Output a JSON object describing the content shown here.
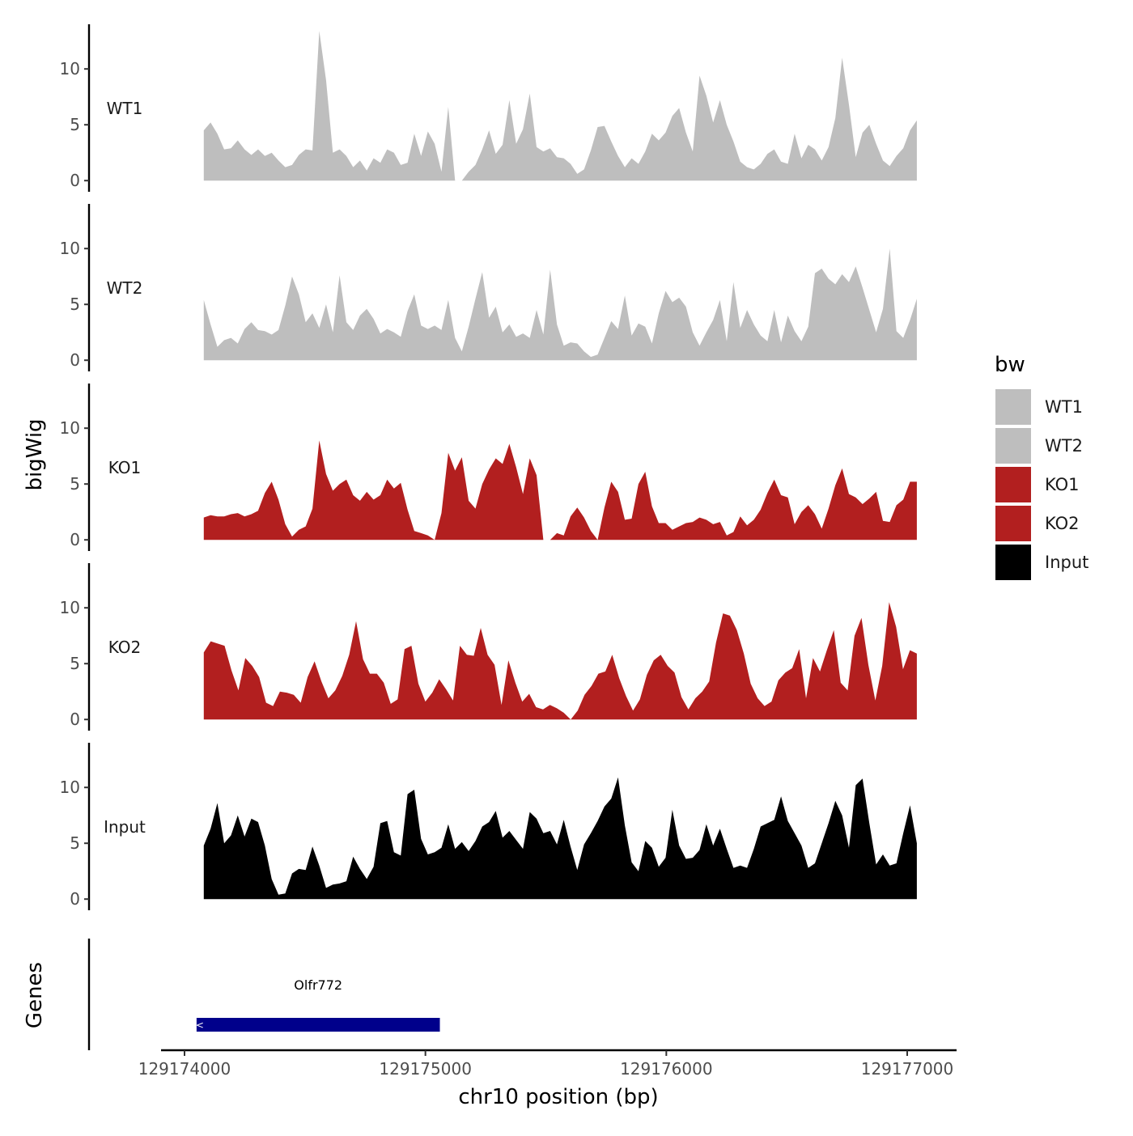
{
  "chart_data": {
    "type": "area",
    "title": "",
    "xlabel": "chr10 position (bp)",
    "ylabel": "bigWig",
    "genes_label": "Genes",
    "xlim": [
      129173930,
      129177200
    ],
    "ylim": [
      -1,
      14
    ],
    "x_ticks": [
      129174000,
      129175000,
      129176000,
      129177000
    ],
    "x_tick_labels": [
      "129174000",
      "129175000",
      "129176000",
      "129177000"
    ],
    "y_ticks": [
      0,
      5,
      10
    ],
    "y_tick_labels": [
      "0",
      "5",
      "10"
    ],
    "x_start": 129174080,
    "x_end": 129177040,
    "bin_width": 20,
    "legend": {
      "title": "bw",
      "position": "right",
      "entries": [
        {
          "label": "WT1",
          "color": "#bebebe"
        },
        {
          "label": "WT2",
          "color": "#bebebe"
        },
        {
          "label": "KO1",
          "color": "#b21f1f"
        },
        {
          "label": "KO2",
          "color": "#b21f1f"
        },
        {
          "label": "Input",
          "color": "#000000"
        }
      ]
    },
    "series": [
      {
        "name": "WT1",
        "color": "#bebebe",
        "values": [
          4.5,
          5.2,
          4.2,
          2.8,
          2.9,
          3.6,
          2.8,
          2.3,
          2.8,
          2.2,
          2.5,
          1.8,
          1.2,
          1.4,
          2.3,
          2.8,
          2.7,
          13.4,
          9.0,
          2.5,
          2.8,
          2.2,
          1.2,
          1.8,
          0.9,
          2.0,
          1.6,
          2.8,
          2.5,
          1.4,
          1.6,
          4.2,
          2.2,
          4.4,
          3.3,
          0.8,
          6.6,
          0.0,
          0.0,
          0.8,
          1.4,
          2.8,
          4.5,
          2.4,
          3.2,
          7.2,
          3.3,
          4.6,
          7.8,
          3.0,
          2.6,
          2.9,
          2.1,
          2.0,
          1.5,
          0.6,
          1.0,
          2.7,
          4.8,
          4.9,
          3.5,
          2.2,
          1.2,
          2.0,
          1.5,
          2.6,
          4.2,
          3.6,
          4.3,
          5.8,
          6.5,
          4.3,
          2.6,
          9.4,
          7.6,
          5.2,
          7.2,
          5.0,
          3.5,
          1.7,
          1.2,
          1.0,
          1.5,
          2.4,
          2.8,
          1.7,
          1.5,
          4.2,
          2.0,
          3.2,
          2.8,
          1.8,
          3.0,
          5.6,
          11.0,
          6.8,
          2.1,
          4.3,
          5.0,
          3.3,
          1.8,
          1.3,
          2.2,
          2.9,
          4.5,
          5.4
        ]
      },
      {
        "name": "WT2",
        "color": "#bebebe",
        "values": [
          5.4,
          3.2,
          1.2,
          1.8,
          2.0,
          1.5,
          2.8,
          3.4,
          2.7,
          2.6,
          2.3,
          2.7,
          4.9,
          7.5,
          5.9,
          3.4,
          4.2,
          2.9,
          5.0,
          2.5,
          7.6,
          3.4,
          2.7,
          4.0,
          4.6,
          3.7,
          2.4,
          2.8,
          2.5,
          2.1,
          4.4,
          5.9,
          3.1,
          2.8,
          3.1,
          2.7,
          5.4,
          2.0,
          0.8,
          3.0,
          5.5,
          7.9,
          3.8,
          4.8,
          2.5,
          3.2,
          2.1,
          2.4,
          2.0,
          4.5,
          2.3,
          8.1,
          3.2,
          1.3,
          1.6,
          1.5,
          0.8,
          0.3,
          0.5,
          2.0,
          3.5,
          2.8,
          5.8,
          2.2,
          3.3,
          3.0,
          1.5,
          4.2,
          6.2,
          5.2,
          5.6,
          4.8,
          2.5,
          1.3,
          2.5,
          3.6,
          5.4,
          1.7,
          7.0,
          2.9,
          4.5,
          3.2,
          2.2,
          1.7,
          4.5,
          1.6,
          4.0,
          2.6,
          1.7,
          3.0,
          7.8,
          8.2,
          7.3,
          6.8,
          7.7,
          7.0,
          8.4,
          6.5,
          4.5,
          2.5,
          4.6,
          10.0,
          2.6,
          2.0,
          3.6,
          5.5
        ]
      },
      {
        "name": "KO1",
        "color": "#b21f1f",
        "values": [
          2.0,
          2.2,
          2.1,
          2.1,
          2.3,
          2.4,
          2.1,
          2.3,
          2.6,
          4.2,
          5.2,
          3.6,
          1.4,
          0.3,
          0.9,
          1.2,
          2.8,
          8.9,
          5.9,
          4.4,
          5.0,
          5.4,
          4.0,
          3.5,
          4.3,
          3.6,
          4.0,
          5.4,
          4.6,
          5.1,
          2.7,
          0.8,
          0.6,
          0.4,
          0.0,
          2.4,
          7.8,
          6.2,
          7.4,
          3.5,
          2.8,
          5.0,
          6.3,
          7.3,
          6.8,
          8.6,
          6.5,
          4.1,
          7.3,
          5.8,
          0.0,
          0.0,
          0.6,
          0.4,
          2.1,
          2.9,
          2.0,
          0.8,
          0.0,
          2.9,
          5.2,
          4.3,
          1.8,
          1.9,
          5.0,
          6.1,
          3.0,
          1.5,
          1.5,
          0.9,
          1.2,
          1.5,
          1.6,
          2.0,
          1.8,
          1.4,
          1.6,
          0.4,
          0.7,
          2.1,
          1.3,
          1.8,
          2.7,
          4.2,
          5.4,
          4.0,
          3.8,
          1.4,
          2.5,
          3.1,
          2.3,
          1.0,
          2.8,
          4.9,
          6.4,
          4.1,
          3.8,
          3.2,
          3.7,
          4.3,
          1.7,
          1.6,
          3.1,
          3.6,
          5.2,
          5.2
        ]
      },
      {
        "name": "KO2",
        "color": "#b21f1f",
        "values": [
          6.0,
          7.0,
          6.8,
          6.6,
          4.4,
          2.6,
          5.5,
          4.8,
          3.8,
          1.5,
          1.2,
          2.5,
          2.4,
          2.2,
          1.5,
          3.8,
          5.2,
          3.4,
          1.9,
          2.6,
          3.9,
          5.8,
          8.8,
          5.4,
          4.1,
          4.1,
          3.3,
          1.4,
          1.8,
          6.3,
          6.6,
          3.2,
          1.6,
          2.4,
          3.6,
          2.7,
          1.7,
          6.6,
          5.8,
          5.7,
          8.2,
          5.8,
          4.9,
          1.3,
          5.3,
          3.3,
          1.6,
          2.3,
          1.1,
          0.9,
          1.3,
          1.0,
          0.6,
          0.0,
          0.8,
          2.2,
          3.0,
          4.1,
          4.3,
          5.8,
          3.7,
          2.1,
          0.8,
          1.8,
          4.0,
          5.3,
          5.8,
          4.8,
          4.2,
          2.0,
          0.9,
          1.9,
          2.5,
          3.4,
          6.9,
          9.5,
          9.3,
          8.0,
          5.9,
          3.2,
          1.9,
          1.2,
          1.6,
          3.5,
          4.2,
          4.6,
          6.3,
          1.9,
          5.5,
          4.3,
          6.2,
          8.0,
          3.3,
          2.6,
          7.5,
          9.1,
          4.9,
          1.7,
          4.8,
          10.5,
          8.3,
          4.5,
          6.2,
          5.9
        ]
      },
      {
        "name": "Input",
        "color": "#000000",
        "values": [
          4.8,
          6.3,
          8.6,
          5.0,
          5.7,
          7.5,
          5.6,
          7.2,
          6.9,
          4.8,
          1.8,
          0.4,
          0.5,
          2.3,
          2.7,
          2.6,
          4.7,
          3.0,
          1.0,
          1.3,
          1.4,
          1.6,
          3.8,
          2.7,
          1.8,
          2.9,
          6.8,
          7.0,
          4.2,
          3.9,
          9.4,
          9.8,
          5.4,
          4.0,
          4.2,
          4.6,
          6.7,
          4.5,
          5.1,
          4.3,
          5.2,
          6.5,
          6.9,
          7.9,
          5.5,
          6.1,
          5.3,
          4.5,
          7.8,
          7.2,
          5.9,
          6.1,
          4.9,
          7.1,
          4.7,
          2.6,
          4.9,
          5.9,
          7.0,
          8.3,
          9.0,
          10.9,
          6.6,
          3.3,
          2.5,
          5.2,
          4.6,
          2.9,
          3.7,
          8.0,
          4.8,
          3.6,
          3.7,
          4.4,
          6.7,
          4.8,
          6.3,
          4.5,
          2.8,
          3.0,
          2.8,
          4.5,
          6.5,
          6.8,
          7.1,
          9.2,
          7.0,
          5.9,
          4.8,
          2.8,
          3.2,
          5.0,
          6.8,
          8.8,
          7.5,
          4.6,
          10.2,
          10.8,
          6.8,
          3.1,
          4.0,
          3.0,
          3.2,
          5.9,
          8.4,
          5.0
        ]
      }
    ],
    "genes": [
      {
        "name": "Olfr772",
        "start": 129174050,
        "end": 129175060,
        "strand": "-",
        "color": "#00008b"
      }
    ]
  }
}
